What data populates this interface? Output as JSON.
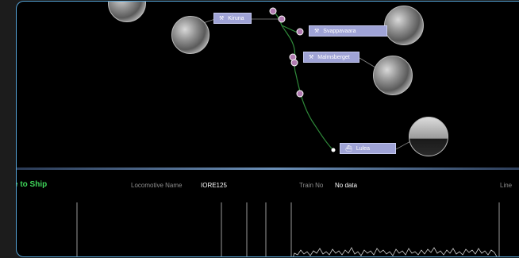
{
  "map": {
    "stations": [
      {
        "name": "Kiruna"
      },
      {
        "name": "Svappavaara"
      },
      {
        "name": "Malmsberget"
      },
      {
        "name": "Lulea"
      }
    ]
  },
  "info": {
    "title": "e to Ship",
    "locomotive_label": "Locomotive Name",
    "locomotive_value": "IORE125",
    "train_label": "Train No",
    "train_value": "No data",
    "line_label": "Line"
  },
  "colors": {
    "frame_border": "#55a3d6",
    "route": "#2f8a3a",
    "station_label": "#9fa3d6",
    "title": "#3fd65a",
    "stop_marker": "#b07ab0"
  }
}
